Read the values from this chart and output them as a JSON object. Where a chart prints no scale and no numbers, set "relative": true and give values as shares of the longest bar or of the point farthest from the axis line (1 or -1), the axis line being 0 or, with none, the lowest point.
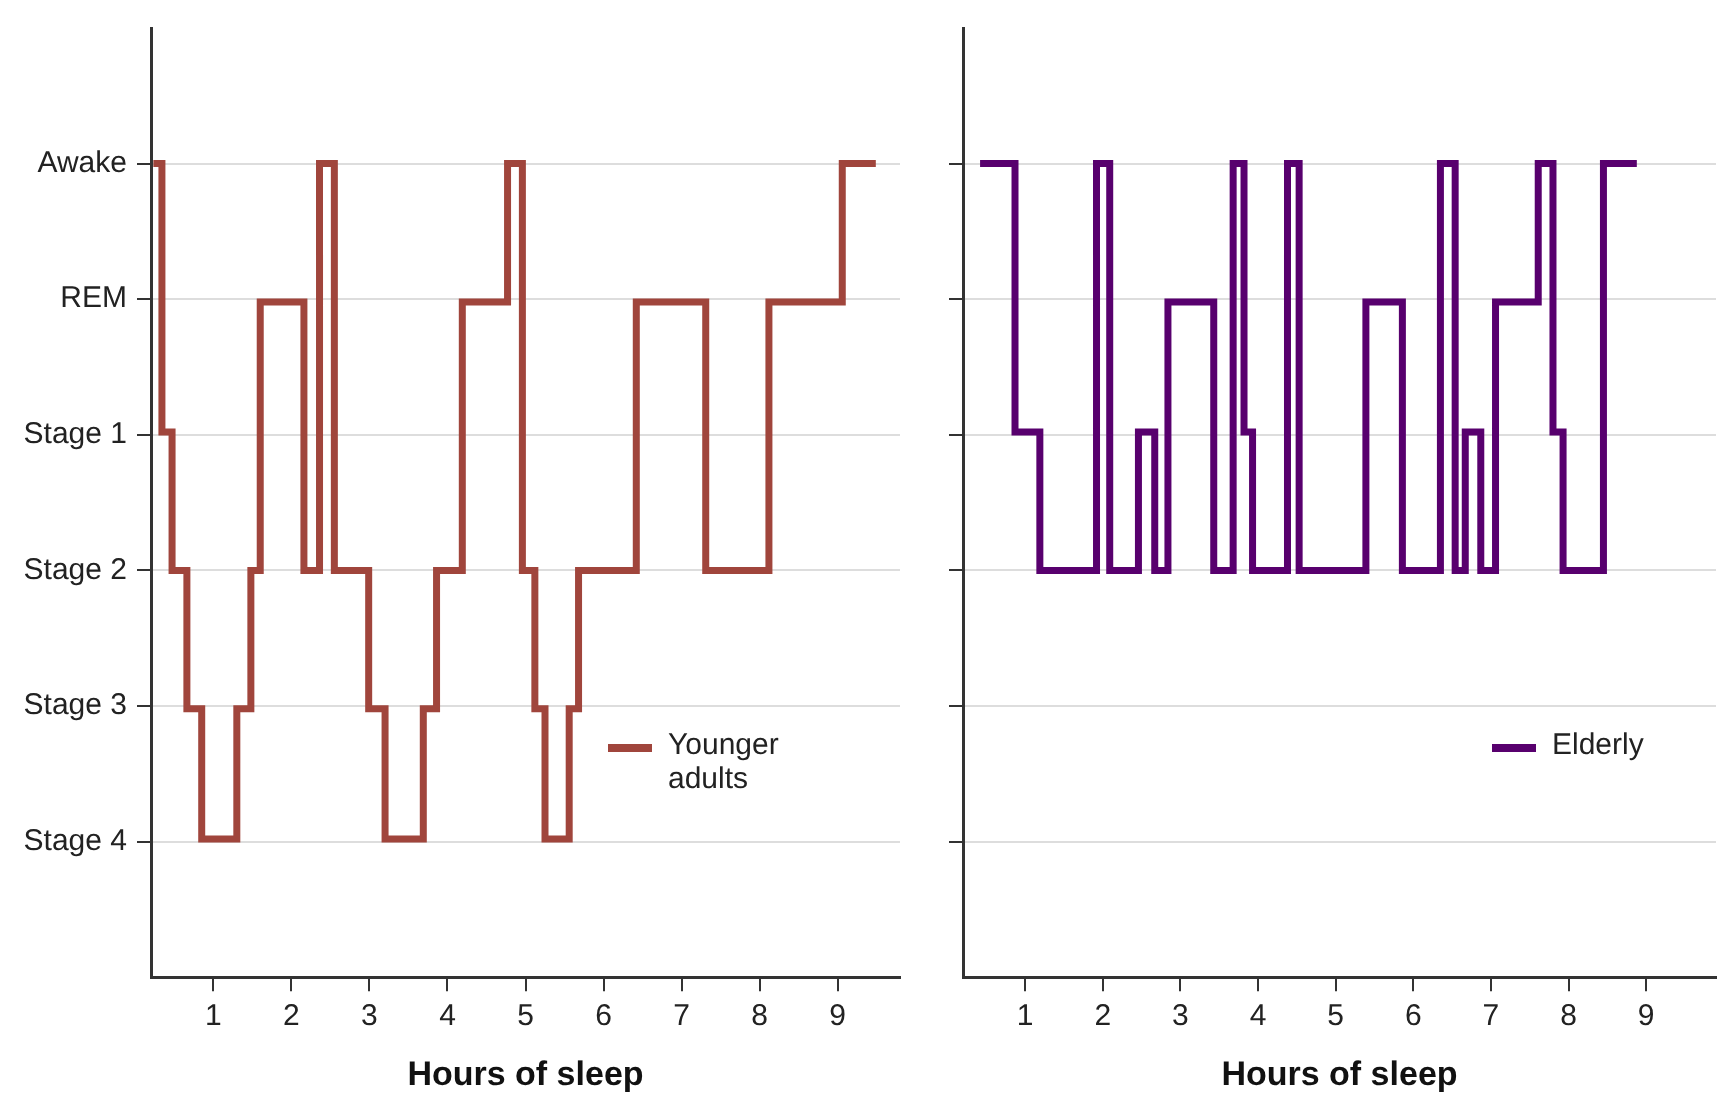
{
  "chart_data": [
    {
      "type": "step",
      "xlabel": "Hours of sleep",
      "xlim": [
        0.2,
        9.8
      ],
      "xticks": [
        1,
        2,
        3,
        4,
        5,
        6,
        7,
        8,
        9
      ],
      "relative": true,
      "annotations": [
        "Stage 4",
        "Stage 3",
        "Stage 2",
        "Stage 1",
        "REM",
        "Awake"
      ],
      "grid": "y",
      "legend": "bottom right",
      "series": [
        {
          "name": "Younger adults",
          "color": "#a0453c",
          "x": [
            0.23,
            0.34,
            0.47,
            0.66,
            0.85,
            1.3,
            1.48,
            1.6,
            2.16,
            2.36,
            2.55,
            2.99,
            3.2,
            3.69,
            3.86,
            4.19,
            4.77,
            4.96,
            5.12,
            5.25,
            5.56,
            5.68,
            6.42,
            7.31,
            8.12,
            9.06,
            9.49
          ],
          "values": [
            1,
            0.67,
            0.5,
            0.33,
            0.17,
            0.33,
            0.5,
            0.83,
            0.5,
            1,
            0.5,
            0.33,
            0.17,
            0.33,
            0.5,
            0.83,
            1,
            0.5,
            0.33,
            0.17,
            0.33,
            0.5,
            0.83,
            0.5,
            0.83,
            1,
            1
          ]
        }
      ]
    },
    {
      "type": "step",
      "xlabel": "Hours of sleep",
      "xlim": [
        0.2,
        9.9
      ],
      "xticks": [
        1,
        2,
        3,
        4,
        5,
        6,
        7,
        8,
        9
      ],
      "relative": true,
      "grid": "y",
      "legend": "bottom right",
      "series": [
        {
          "name": "Elderly",
          "color": "#58006e",
          "x": [
            0.42,
            0.87,
            1.19,
            1.92,
            2.09,
            2.46,
            2.67,
            2.84,
            3.43,
            3.68,
            3.82,
            3.93,
            4.38,
            4.53,
            5.39,
            5.86,
            6.35,
            6.54,
            6.67,
            6.87,
            7.06,
            7.61,
            7.8,
            7.93,
            8.45,
            8.88
          ],
          "values": [
            1,
            0.67,
            0.5,
            1,
            0.5,
            0.67,
            0.5,
            0.83,
            0.5,
            1,
            0.67,
            0.5,
            1,
            0.5,
            0.83,
            0.5,
            1,
            0.5,
            0.67,
            0.5,
            0.83,
            1,
            0.67,
            0.5,
            1,
            1
          ]
        }
      ]
    }
  ]
}
